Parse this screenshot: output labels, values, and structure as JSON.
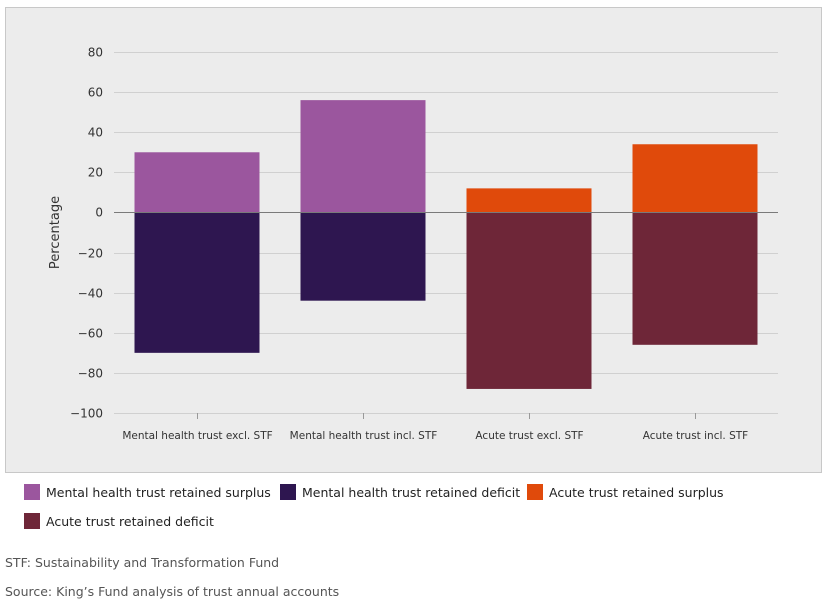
{
  "chart_data": {
    "type": "bar",
    "stacked": true,
    "categories": [
      "Mental health trust excl. STF",
      "Mental health trust incl. STF",
      "Acute trust excl. STF",
      "Acute trust incl. STF"
    ],
    "series": [
      {
        "name": "Mental health trust retained surplus",
        "color": "#9b569e",
        "values": [
          30,
          56,
          null,
          null
        ]
      },
      {
        "name": "Mental health trust retained deficit",
        "color": "#2e1650",
        "values": [
          -70,
          -44,
          null,
          null
        ]
      },
      {
        "name": "Acute trust retained surplus",
        "color": "#e04a0b",
        "values": [
          null,
          null,
          12,
          34
        ]
      },
      {
        "name": "Acute trust retained deficit",
        "color": "#6e2638",
        "values": [
          null,
          null,
          -88,
          -66
        ]
      }
    ],
    "title": "",
    "xlabel": "",
    "ylabel": "Percentage",
    "ylim": [
      -100,
      80
    ],
    "yticks": [
      80,
      60,
      40,
      20,
      0,
      -20,
      -40,
      -60,
      -80,
      -100
    ],
    "ytick_labels": [
      "80",
      "60",
      "40",
      "20",
      "0",
      "−20",
      "−40",
      "−60",
      "−80",
      "−100"
    ],
    "grid": true,
    "legend_position": "bottom"
  },
  "legend": {
    "items": [
      {
        "label": "Mental health trust retained surplus",
        "color": "#9b569e"
      },
      {
        "label": "Mental health trust retained deficit",
        "color": "#2e1650"
      },
      {
        "label": "Acute trust retained surplus",
        "color": "#e04a0b"
      },
      {
        "label": "Acute trust retained deficit",
        "color": "#6e2638"
      }
    ]
  },
  "notes": {
    "stf": "STF: Sustainability and Transformation Fund",
    "source": "Source: King’s Fund analysis of trust annual accounts"
  }
}
